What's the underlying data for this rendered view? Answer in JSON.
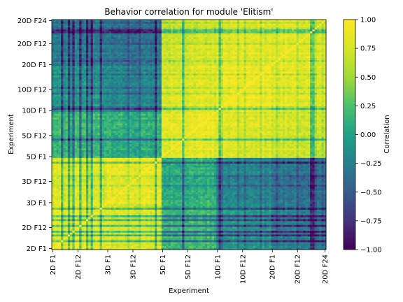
{
  "chart_data": {
    "type": "heatmap",
    "title": "Behavior correlation for module 'Elitism'",
    "xlabel": "Experiment",
    "ylabel": "Experiment",
    "x_tick_labels": [
      "2D F1",
      "2D F12",
      "3D F1",
      "3D F12",
      "5D F1",
      "5D F12",
      "10D F1",
      "10D F12",
      "20D F1",
      "20D F12",
      "20D F24"
    ],
    "y_tick_labels": [
      "2D F1",
      "2D F12",
      "3D F1",
      "3D F12",
      "5D F1",
      "5D F12",
      "10D F1",
      "10D F12",
      "20D F1",
      "20D F12",
      "20D F24"
    ],
    "tick_index": [
      0,
      11,
      24,
      35,
      48,
      59,
      72,
      83,
      96,
      107,
      119
    ],
    "matrix_size": 120,
    "block_sizes": [
      24,
      24,
      24,
      24,
      24
    ],
    "block_correlation": [
      [
        0.8,
        0.75,
        0.15,
        -0.1,
        -0.25
      ],
      [
        0.75,
        0.85,
        0.1,
        -0.2,
        -0.3
      ],
      [
        0.15,
        0.1,
        0.85,
        0.8,
        0.75
      ],
      [
        -0.1,
        -0.2,
        0.8,
        0.9,
        0.85
      ],
      [
        -0.25,
        -0.3,
        0.75,
        0.85,
        0.88
      ]
    ],
    "colorbar": {
      "label": "Correlation",
      "vmin": -1.0,
      "vmax": 1.0,
      "ticks": [
        "1.00",
        "0.75",
        "0.50",
        "0.25",
        "0.00",
        "−0.25",
        "−0.50",
        "−0.75",
        "−1.00"
      ],
      "tick_values": [
        1.0,
        0.75,
        0.5,
        0.25,
        0.0,
        -0.25,
        -0.5,
        -0.75,
        -1.0
      ],
      "colormap": "viridis"
    }
  }
}
